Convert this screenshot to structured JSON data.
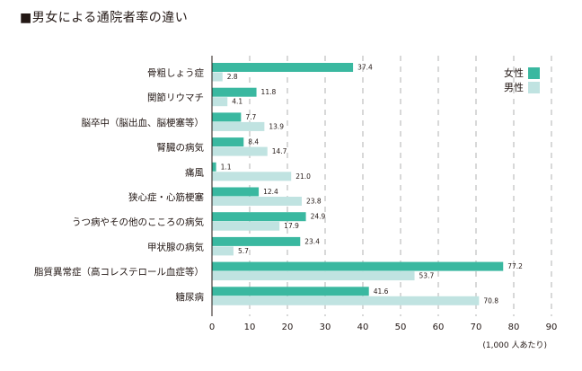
{
  "chart_data": {
    "type": "bar",
    "orientation": "horizontal",
    "title": "■男女による通院者率の違い",
    "categories": [
      "骨粗しょう症",
      "関節リウマチ",
      "脳卒中（脳出血、脳梗塞等）",
      "腎臓の病気",
      "痛風",
      "狭心症・心筋梗塞",
      "うつ病やその他のこころの病気",
      "甲状腺の病気",
      "脂質異常症（高コレステロール血症等）",
      "糖尿病"
    ],
    "series": [
      {
        "name": "女性",
        "color": "#3ab8a0",
        "values": [
          37.4,
          11.8,
          7.7,
          8.4,
          1.1,
          12.4,
          24.9,
          23.4,
          77.2,
          41.6
        ],
        "labels": [
          "37.4",
          "11.8",
          "7.7",
          "8.4",
          "1.1",
          "12.4",
          "24.9",
          "23.4",
          "77.2",
          "41.6"
        ]
      },
      {
        "name": "男性",
        "color": "#c0e3e1",
        "values": [
          2.8,
          4.1,
          13.9,
          14.7,
          21.0,
          23.8,
          17.9,
          5.7,
          53.7,
          70.8
        ],
        "labels": [
          "2.8",
          "4.1",
          "13.9",
          "14.7",
          "21.0",
          "23.8",
          "17.9",
          "5.7",
          "53.7",
          "70.8"
        ]
      }
    ],
    "xlim": [
      0,
      90
    ],
    "xticks": [
      0,
      10,
      20,
      30,
      40,
      50,
      60,
      70,
      80,
      90
    ],
    "xlabel": "(1,000 人あたり)",
    "ylabel": "",
    "grid": "vertical dashed",
    "legend_position": "top-right"
  }
}
